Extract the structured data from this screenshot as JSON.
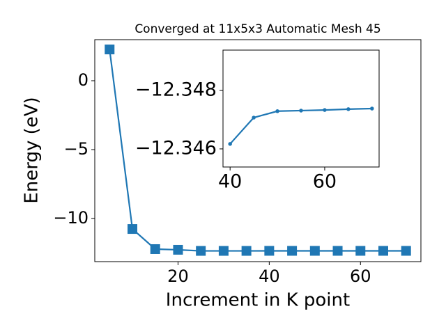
{
  "chart_data": [
    {
      "type": "line",
      "title": "Converged at 11x5x3 Automatic Mesh 45",
      "x_label": "Increment in K point",
      "y_label": "Energy (eV)",
      "x": [
        5,
        10,
        15,
        20,
        25,
        30,
        35,
        40,
        45,
        50,
        55,
        60,
        65,
        70
      ],
      "series": [
        {
          "color": "#1f77b4",
          "marker": "square",
          "values": [
            2.27,
            -10.76,
            -12.22,
            -12.27,
            -12.35,
            -12.35,
            -12.35,
            -12.346,
            -12.347,
            -12.347,
            -12.347,
            -12.347,
            -12.347,
            -12.347
          ]
        }
      ],
      "xlim": [
        1.75,
        73.25
      ],
      "ylim": [
        -13.13,
        2.98
      ],
      "xticks": [
        20,
        40,
        60
      ],
      "yticks": [
        {
          "value": -10,
          "label": "−10"
        },
        {
          "value": -5,
          "label": "−5"
        },
        0
      ]
    },
    {
      "type": "line",
      "x": [
        40,
        45,
        50,
        55,
        60,
        65,
        70
      ],
      "series": [
        {
          "color": "#1f77b4",
          "marker": "circle",
          "values": [
            -12.34617,
            -12.34707,
            -12.34729,
            -12.34731,
            -12.34733,
            -12.34736,
            -12.34738
          ]
        }
      ],
      "xlim": [
        38.5,
        71.5
      ],
      "ylim": [
        -12.34538,
        -12.34938
      ],
      "xticks": [
        40,
        60
      ],
      "yticks": [
        {
          "value": -12.348,
          "label": "−12.348"
        },
        {
          "value": -12.346,
          "label": "−12.346"
        }
      ]
    }
  ]
}
